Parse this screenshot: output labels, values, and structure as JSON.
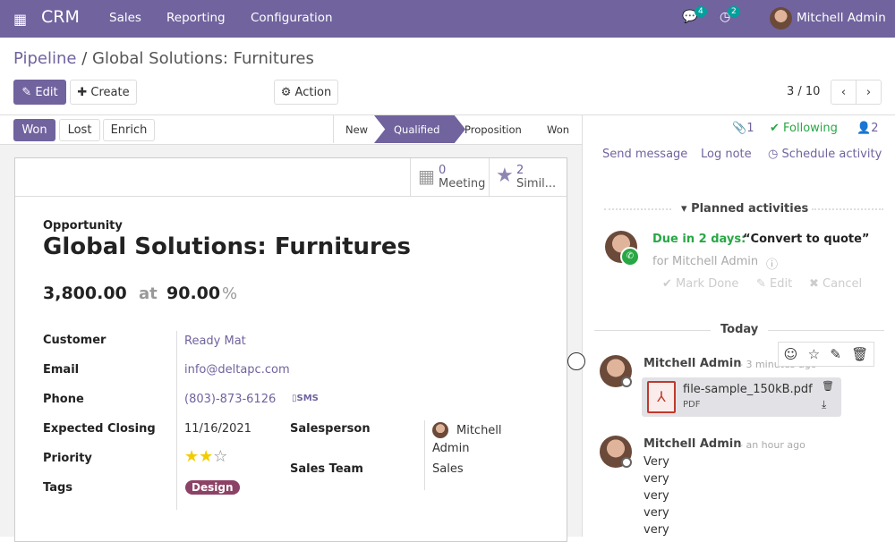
{
  "navbar": {
    "app": "CRM",
    "menu": [
      "Sales",
      "Reporting",
      "Configuration"
    ],
    "messages_count": "4",
    "activities_count": "2",
    "user": "Mitchell Admin",
    "brand_color": "#71639e"
  },
  "breadcrumb": {
    "parent": "Pipeline",
    "separator": "/",
    "current": "Global Solutions: Furnitures"
  },
  "toolbar": {
    "edit": "Edit",
    "create": "Create",
    "action": "Action",
    "pager": "3 / 10"
  },
  "statusbar": {
    "buttons": [
      "Won",
      "Lost",
      "Enrich"
    ],
    "stages": [
      "New",
      "Qualified",
      "Proposition",
      "Won"
    ],
    "active_stage": "Qualified"
  },
  "smart_buttons": [
    {
      "count": "0",
      "label": "Meeting",
      "icon": "calendar-icon"
    },
    {
      "count": "2",
      "label": "Simil...",
      "icon": "star-icon"
    }
  ],
  "form": {
    "type_label": "Opportunity",
    "title": "Global Solutions: Furnitures",
    "revenue": "3,800.00",
    "at": "at",
    "probability": "90.00",
    "percent": "%",
    "fields": {
      "customer_label": "Customer",
      "customer": "Ready Mat",
      "email_label": "Email",
      "email": "info@deltapc.com",
      "phone_label": "Phone",
      "phone": "(803)-873-6126",
      "sms": "SMS",
      "closing_label": "Expected Closing",
      "closing": "11/16/2021",
      "priority_label": "Priority",
      "priority_stars": 2,
      "priority_max": 3,
      "tags_label": "Tags",
      "tag": "Design",
      "salesperson_label": "Salesperson",
      "salesperson": "Mitchell Admin",
      "team_label": "Sales Team",
      "team": "Sales"
    }
  },
  "chatter": {
    "attachments": "1",
    "following": "Following",
    "followers": "2",
    "send_message": "Send message",
    "log_note": "Log note",
    "schedule": "Schedule activity",
    "planned_title": "Planned activities",
    "activity_due": "Due in 2 days:",
    "activity_name": "“Convert to quote”",
    "activity_for": "for Mitchell Admin",
    "mark_done": "Mark Done",
    "edit": "Edit",
    "cancel": "Cancel",
    "today": "Today",
    "messages": [
      {
        "author": "Mitchell Admin",
        "time": "- 3 minutes ago",
        "file": "file-sample_150kB.pdf",
        "file_type": "PDF"
      },
      {
        "author": "Mitchell Admin",
        "time": "- an hour ago",
        "lines": [
          "Very",
          "very",
          "very",
          "very",
          "very"
        ]
      }
    ]
  }
}
